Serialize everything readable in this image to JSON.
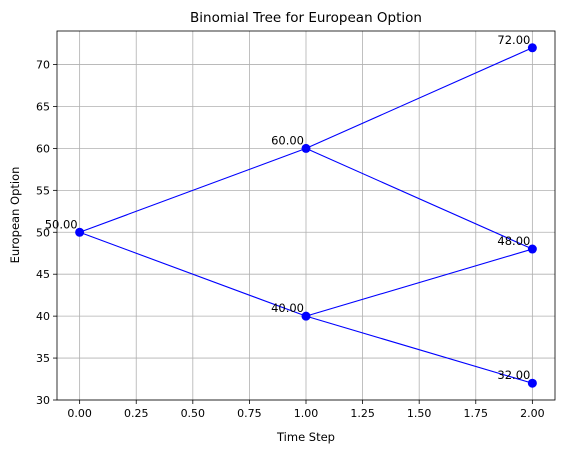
{
  "chart_data": {
    "type": "scatter",
    "title": "Binomial Tree for European Option",
    "xlabel": "Time Step",
    "ylabel": "European Option",
    "xlim": [
      -0.1,
      2.1
    ],
    "ylim": [
      30,
      74
    ],
    "xticks": [
      "0.00",
      "0.25",
      "0.50",
      "0.75",
      "1.00",
      "1.25",
      "1.50",
      "1.75",
      "2.00"
    ],
    "yticks": [
      "30",
      "35",
      "40",
      "45",
      "50",
      "55",
      "60",
      "65",
      "70"
    ],
    "grid": true,
    "line_color": "#0000ff",
    "marker_color": "#0000ff",
    "nodes": [
      {
        "x": 0,
        "y": 50,
        "label": "50.00"
      },
      {
        "x": 1,
        "y": 60,
        "label": "60.00"
      },
      {
        "x": 1,
        "y": 40,
        "label": "40.00"
      },
      {
        "x": 2,
        "y": 72,
        "label": "72.00"
      },
      {
        "x": 2,
        "y": 48,
        "label": "48.00"
      },
      {
        "x": 2,
        "y": 32,
        "label": "32.00"
      }
    ],
    "edges": [
      {
        "from": 0,
        "to": 1
      },
      {
        "from": 0,
        "to": 2
      },
      {
        "from": 1,
        "to": 3
      },
      {
        "from": 1,
        "to": 4
      },
      {
        "from": 2,
        "to": 4
      },
      {
        "from": 2,
        "to": 5
      }
    ]
  }
}
